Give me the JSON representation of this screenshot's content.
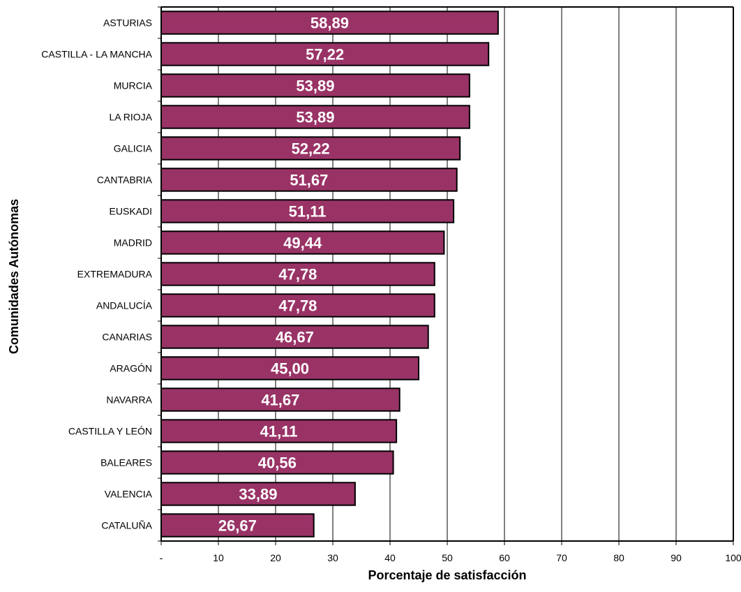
{
  "chart_data": {
    "type": "bar",
    "orientation": "horizontal",
    "title": "",
    "xlabel": "Porcentaje de satisfacción",
    "ylabel": "Comunidades Autónomas",
    "categories": [
      "ASTURIAS",
      "CASTILLA - LA MANCHA",
      "MURCIA",
      "LA RIOJA",
      "GALICIA",
      "CANTABRIA",
      "EUSKADI",
      "MADRID",
      "EXTREMADURA",
      "ANDALUCÍA",
      "CANARIAS",
      "ARAGÓN",
      "NAVARRA",
      "CASTILLA Y LEÓN",
      "BALEARES",
      "VALENCIA",
      "CATALUÑA"
    ],
    "values": [
      58.89,
      57.22,
      53.89,
      53.89,
      52.22,
      51.67,
      51.11,
      49.44,
      47.78,
      47.78,
      46.67,
      45.0,
      41.67,
      41.11,
      40.56,
      33.89,
      26.67
    ],
    "value_labels": [
      "58,89",
      "57,22",
      "53,89",
      "53,89",
      "52,22",
      "51,67",
      "51,11",
      "49,44",
      "47,78",
      "47,78",
      "46,67",
      "45,00",
      "41,67",
      "41,11",
      "40,56",
      "33,89",
      "26,67"
    ],
    "xticks": [
      0,
      10,
      20,
      30,
      40,
      50,
      60,
      70,
      80,
      90,
      100
    ],
    "xtick_labels": [
      "-",
      "10",
      "20",
      "30",
      "40",
      "50",
      "60",
      "70",
      "80",
      "90",
      "100"
    ],
    "xlim": [
      0,
      100
    ],
    "grid": "vertical",
    "legend": "none",
    "colors": {
      "bar": "#993366",
      "bar_border": "#000000",
      "grid": "#000000",
      "value_label": "#ffffff"
    }
  }
}
